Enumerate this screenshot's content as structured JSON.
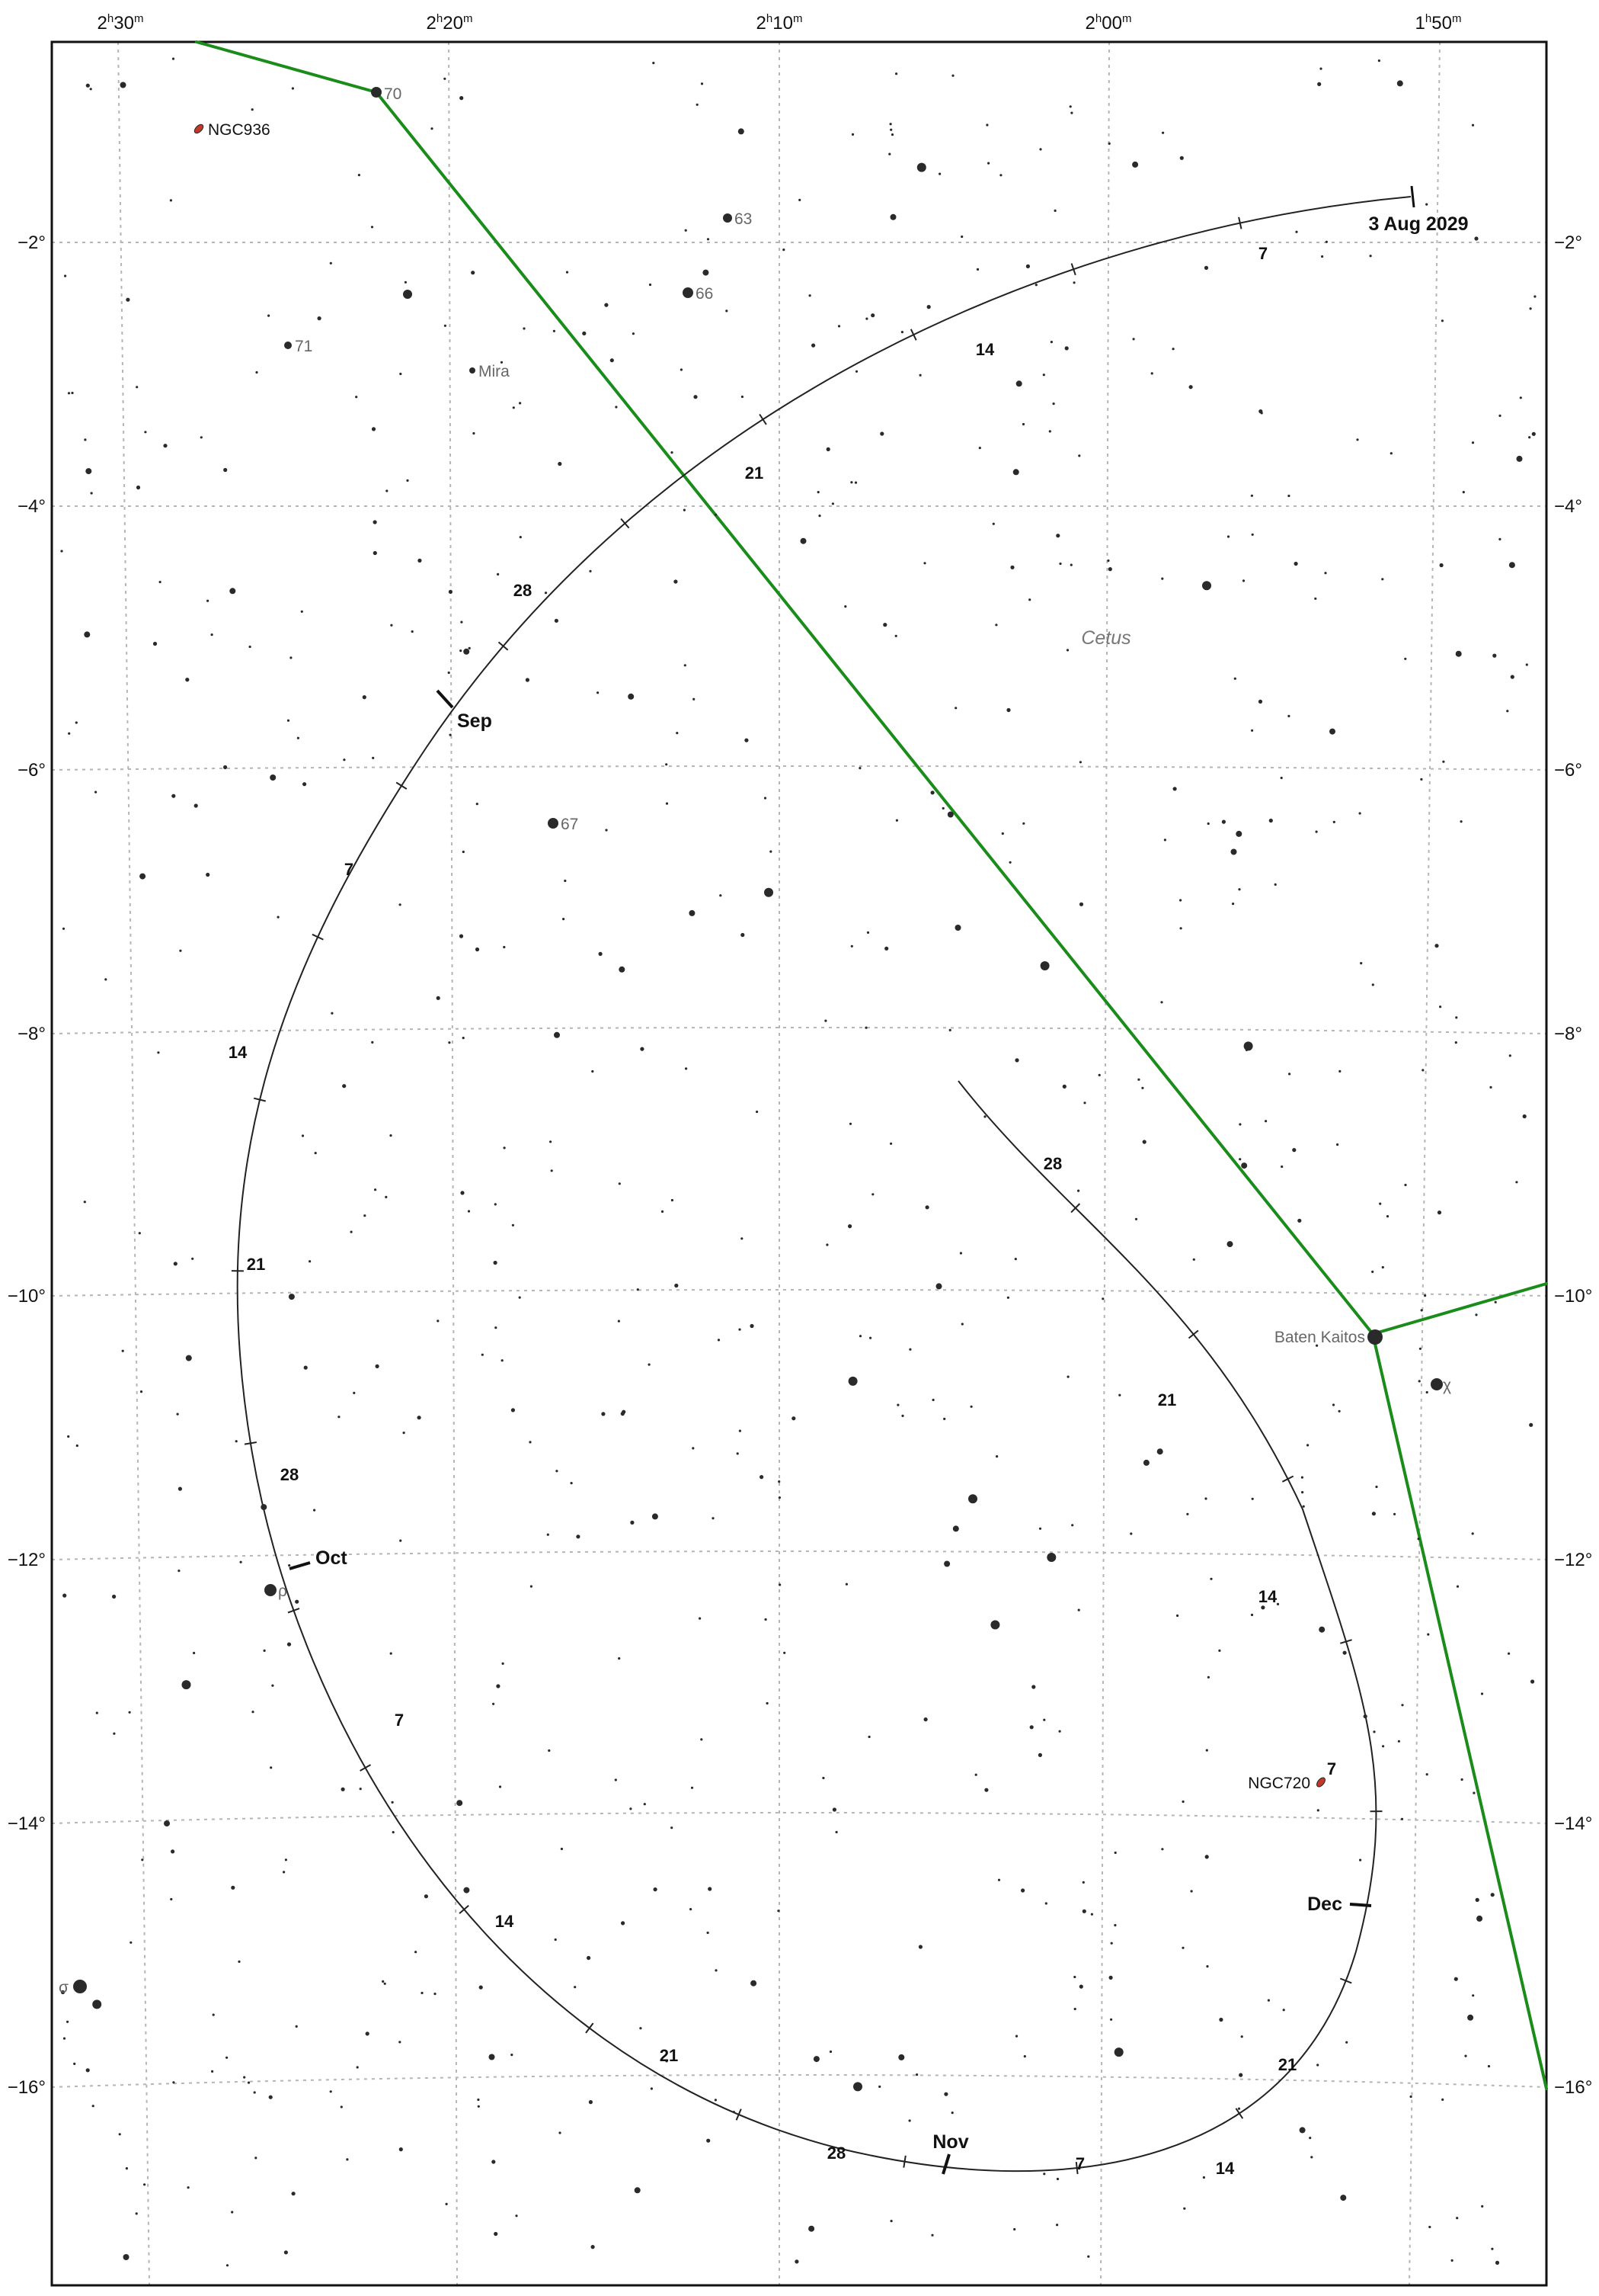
{
  "map": {
    "constellation_name": "Cetus",
    "ra_labels": [
      {
        "h": "2",
        "m": "30"
      },
      {
        "h": "2",
        "m": "20"
      },
      {
        "h": "2",
        "m": "10"
      },
      {
        "h": "2",
        "m": "00"
      },
      {
        "h": "1",
        "m": "50"
      }
    ],
    "dec_labels": [
      "−2°",
      "−4°",
      "−6°",
      "−8°",
      "−10°",
      "−12°",
      "−14°",
      "−16°"
    ],
    "start_label": "3 Aug 2029",
    "month_labels": [
      "Sep",
      "Oct",
      "Nov",
      "Dec"
    ],
    "day_ticks": [
      "7",
      "14",
      "21",
      "28",
      "7",
      "14",
      "21",
      "28",
      "7",
      "14",
      "21",
      "28",
      "7",
      "14",
      "21",
      "28",
      "7",
      "14",
      "21"
    ],
    "named_stars": [
      "70",
      "63",
      "66",
      "71",
      "Mira",
      "67",
      "Baten Kaitos",
      "χ",
      "ρ",
      "σ"
    ],
    "deep_sky": [
      "NGC936",
      "NGC720"
    ],
    "colors": {
      "constellation_line": "#1a8c1a",
      "grid": "#b5b5b5",
      "track": "#222222",
      "galaxy": "#c0392b",
      "star": "#2a2a2a",
      "frame": "#111111"
    }
  }
}
